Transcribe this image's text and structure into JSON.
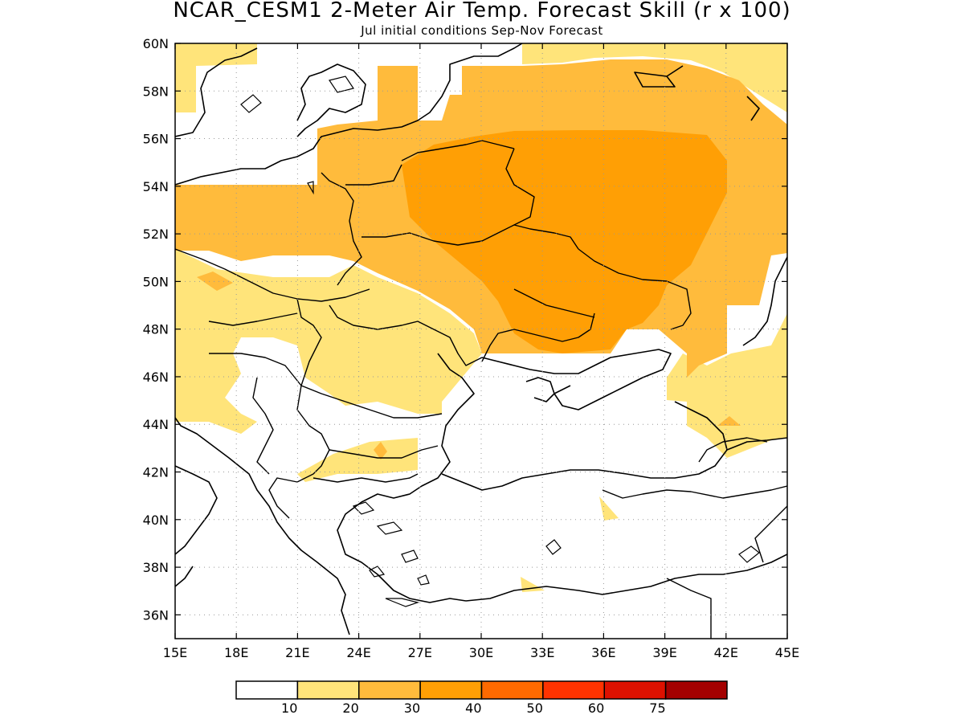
{
  "title": "NCAR_CESM1 2-Meter Air Temp. Forecast Skill (r x 100)",
  "subtitle": "Jul initial conditions   Sep-Nov Forecast",
  "map": {
    "lon_range": [
      15,
      45
    ],
    "lat_range": [
      35,
      60
    ],
    "lon_ticks": [
      "15E",
      "18E",
      "21E",
      "24E",
      "27E",
      "30E",
      "33E",
      "36E",
      "39E",
      "42E",
      "45E"
    ],
    "lat_ticks": [
      "36N",
      "38N",
      "40N",
      "42N",
      "44N",
      "46N",
      "48N",
      "50N",
      "52N",
      "54N",
      "56N",
      "58N",
      "60N"
    ],
    "grid": "dotted"
  },
  "colorbar": {
    "colors": [
      "#ffffff",
      "#ffe47a",
      "#ffbb3c",
      "#ff9f05",
      "#ff6a00",
      "#ff3300",
      "#dd1100",
      "#a40000"
    ],
    "labels": [
      "10",
      "20",
      "30",
      "40",
      "50",
      "60",
      "75"
    ]
  },
  "chart_data": {
    "type": "heatmap",
    "title": "NCAR_CESM1 2-Meter Air Temp. Forecast Skill (r x 100)",
    "subtitle": "Jul initial conditions   Sep-Nov Forecast",
    "xlim": [
      15,
      45
    ],
    "ylim": [
      35,
      60
    ],
    "levels": [
      10,
      20,
      30,
      40,
      50,
      60,
      75
    ],
    "regions": [
      {
        "bin": "10-20",
        "area": "Scandinavia west edge, northern Russia (north of 57N), Carpathian basin, Romania, eastern Bulgaria, northern Caucasus (north of 45N)"
      },
      {
        "bin": "20-30",
        "area": "Poland, Baltics, Belarus, western Ukraine, western Russia ring around core"
      },
      {
        "bin": "30-40",
        "area": "Eastern Belarus, central/eastern Ukraine and western Russia (approx. 28E-40E, 47N-55N)"
      },
      {
        "bin": "<10",
        "area": "Balkans, Greece, Turkey, Black Sea, Hungary south"
      }
    ]
  }
}
